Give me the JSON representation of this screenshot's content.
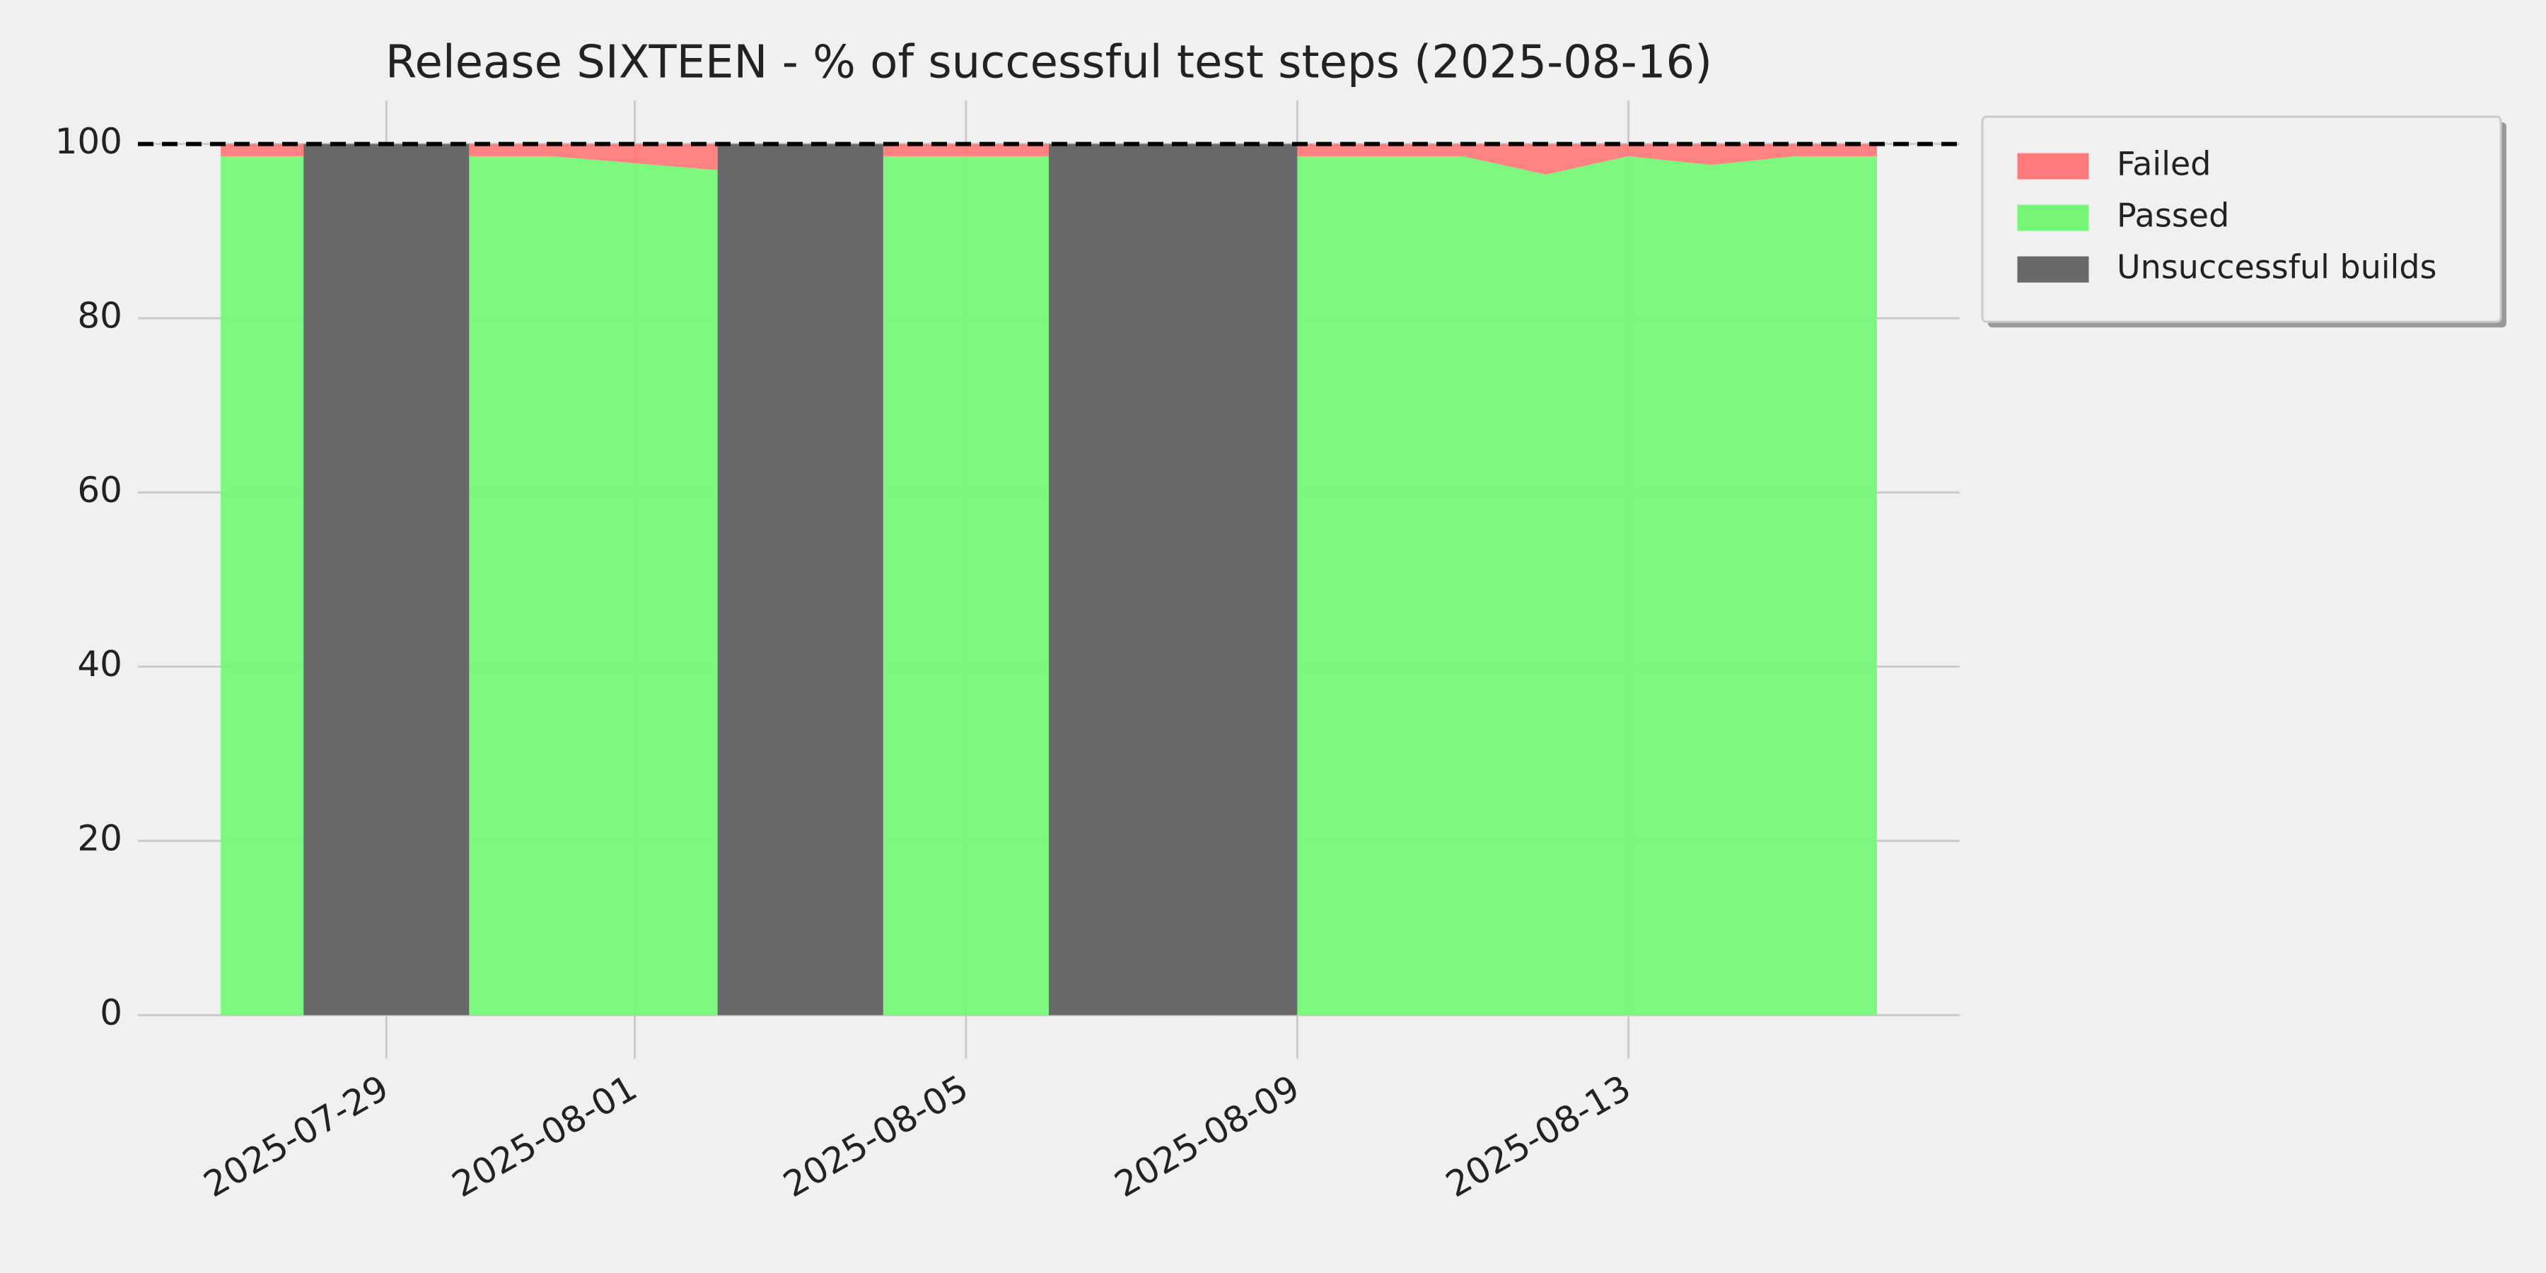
{
  "chart_data": {
    "type": "stacked-area",
    "title": "Release SIXTEEN - % of successful test steps (2025-08-16)",
    "x": [
      "2025-07-27",
      "2025-07-28",
      "2025-07-29",
      "2025-07-30",
      "2025-07-31",
      "2025-08-01",
      "2025-08-02",
      "2025-08-03",
      "2025-08-04",
      "2025-08-05",
      "2025-08-06",
      "2025-08-07",
      "2025-08-08",
      "2025-08-09",
      "2025-08-10",
      "2025-08-11",
      "2025-08-12",
      "2025-08-13",
      "2025-08-14",
      "2025-08-15",
      "2025-08-16"
    ],
    "series": [
      {
        "name": "Failed",
        "color": "#ff7b7b",
        "values": [
          1.4,
          1.4,
          null,
          1.4,
          1.4,
          2.2,
          3.0,
          null,
          1.4,
          1.4,
          1.4,
          null,
          null,
          1.4,
          1.4,
          1.4,
          3.5,
          1.4,
          2.4,
          1.4,
          1.4
        ]
      },
      {
        "name": "Passed",
        "color": "#77f777",
        "values": [
          98.6,
          98.6,
          null,
          98.6,
          98.6,
          97.8,
          97.0,
          null,
          98.6,
          98.6,
          98.6,
          null,
          null,
          98.6,
          98.6,
          98.6,
          96.5,
          98.6,
          97.6,
          98.6,
          98.6
        ]
      },
      {
        "name": "Unsuccessful builds",
        "color": "#696969",
        "values": [
          null,
          null,
          100,
          null,
          null,
          null,
          null,
          100,
          null,
          null,
          null,
          100,
          100,
          null,
          null,
          null,
          null,
          null,
          null,
          null,
          null
        ]
      }
    ],
    "reference_line": 100,
    "xlim": [
      "2025-07-26",
      "2025-08-17"
    ],
    "xticks": [
      "2025-07-29",
      "2025-08-01",
      "2025-08-05",
      "2025-08-09",
      "2025-08-13"
    ],
    "ylim": [
      -5,
      105
    ],
    "yticks": [
      0,
      20,
      40,
      60,
      80,
      100
    ],
    "grid": true,
    "legend": "outside upper right"
  }
}
